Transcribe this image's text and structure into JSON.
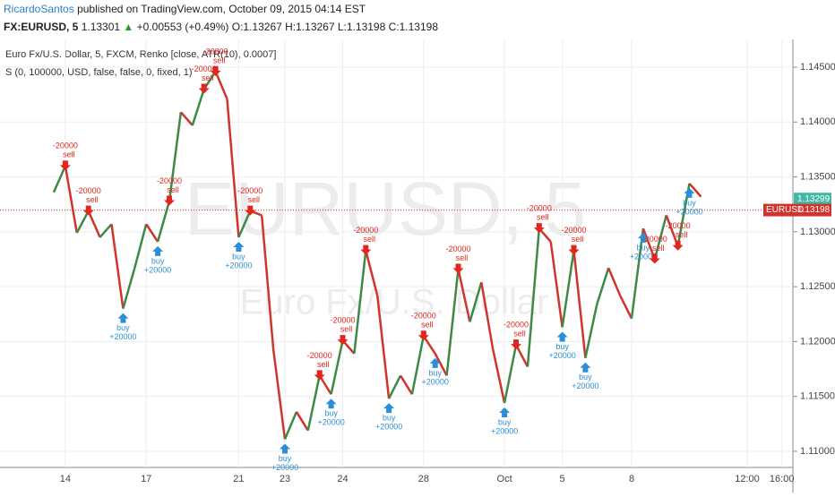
{
  "header": {
    "author": "RicardoSantos",
    "published": "published on TradingView.com, October 09, 2015 04:14 EST",
    "symbol": "FX:EURUSD, 5",
    "last": "1.13301",
    "change_arrow": "▲",
    "change": "+0.00553 (+0.49%)",
    "open": "O:1.13267",
    "high": "H:1.13267",
    "low": "L:1.13198",
    "close": "C:1.13198"
  },
  "chart_data": {
    "type": "renko",
    "legend_main": "Euro Fx/U.S. Dollar, 5, FXCM, Renko [close, ATR(10), 0.0007]",
    "legend_study": "S (0, 100000, USD, false, false, 0, fixed, 1)",
    "watermark": "EURUSD, 5",
    "watermark_sub": "Euro Fx/U.S. Dollar",
    "up_color": "#3c8a45",
    "down_color": "#d0342c",
    "buy_color": "#2a8fd6",
    "sell_color": "#e0261e",
    "categories": [
      null,
      "14",
      null,
      null,
      null,
      null,
      null,
      null,
      "17",
      null,
      null,
      null,
      null,
      null,
      null,
      null,
      "21",
      null,
      null,
      null,
      "23",
      null,
      null,
      null,
      null,
      "24",
      null,
      null,
      null,
      null,
      null,
      null,
      "28",
      null,
      null,
      null,
      null,
      null,
      null,
      "Oct",
      null,
      null,
      null,
      null,
      "5",
      null,
      null,
      null,
      null,
      null,
      "8",
      null,
      null,
      null,
      null,
      null,
      null,
      null,
      null,
      null,
      "12:00",
      null,
      null,
      "16:00"
    ],
    "values": [
      1.1336,
      1.136,
      1.1299,
      1.1319,
      1.1295,
      1.1307,
      1.123,
      1.1267,
      1.1307,
      1.1291,
      1.1328,
      1.1409,
      1.1397,
      1.143,
      1.1446,
      1.1421,
      1.1295,
      1.1319,
      1.1315,
      1.1193,
      1.1111,
      1.1136,
      1.1119,
      1.1169,
      1.1152,
      1.1201,
      1.1189,
      1.1283,
      1.1242,
      1.1148,
      1.1169,
      1.1152,
      1.1205,
      1.1189,
      1.1169,
      1.1266,
      1.1218,
      1.1254,
      1.1193,
      1.1144,
      1.1197,
      1.1177,
      1.1303,
      1.1291,
      1.1213,
      1.1283,
      1.1185,
      1.1234,
      1.1267,
      1.1242,
      1.1221,
      1.1303,
      1.1275,
      1.1315,
      1.1287,
      1.1344,
      1.1332,
      null,
      null,
      null,
      null,
      null,
      null,
      null
    ],
    "signals": [
      null,
      {
        "side": "sell",
        "amount": "-20000"
      },
      null,
      {
        "side": "sell",
        "amount": "-20000"
      },
      null,
      null,
      {
        "side": "buy",
        "amount": "+20000"
      },
      null,
      null,
      {
        "side": "buy",
        "amount": "+20000"
      },
      {
        "side": "sell",
        "amount": "-20000"
      },
      null,
      null,
      {
        "side": "sell",
        "amount": "-20000"
      },
      {
        "side": "sell",
        "amount": "-20000"
      },
      null,
      {
        "side": "buy",
        "amount": "+20000"
      },
      {
        "side": "sell",
        "amount": "-20000"
      },
      null,
      null,
      {
        "side": "buy",
        "amount": "+20000"
      },
      null,
      null,
      {
        "side": "sell",
        "amount": "-20000"
      },
      {
        "side": "buy",
        "amount": "+20000"
      },
      {
        "side": "sell",
        "amount": "-20000"
      },
      null,
      {
        "side": "sell",
        "amount": "-20000"
      },
      null,
      {
        "side": "buy",
        "amount": "+20000"
      },
      null,
      null,
      {
        "side": "sell",
        "amount": "-20000"
      },
      {
        "side": "buy",
        "amount": "+20000"
      },
      null,
      {
        "side": "sell",
        "amount": "-20000"
      },
      null,
      null,
      null,
      {
        "side": "buy",
        "amount": "+20000"
      },
      {
        "side": "sell",
        "amount": "-20000"
      },
      null,
      {
        "side": "sell",
        "amount": "-20000"
      },
      null,
      {
        "side": "buy",
        "amount": "+20000"
      },
      {
        "side": "sell",
        "amount": "-20000"
      },
      {
        "side": "buy",
        "amount": "+20000"
      },
      null,
      null,
      null,
      null,
      {
        "side": "buy",
        "amount": "+20000"
      },
      {
        "side": "sell",
        "amount": "-20000"
      },
      null,
      {
        "side": "sell",
        "amount": "-20000"
      },
      {
        "side": "buy",
        "amount": "+20000"
      },
      null,
      null,
      null,
      null,
      null,
      null,
      null,
      null,
      null
    ],
    "ylim": [
      1.10869,
      1.14745
    ],
    "yticks": [
      {
        "value": 1.11,
        "label": "1.11000"
      },
      {
        "value": 1.115,
        "label": "1.11500"
      },
      {
        "value": 1.12,
        "label": "1.12000"
      },
      {
        "value": 1.125,
        "label": "1.12500"
      },
      {
        "value": 1.13,
        "label": "1.13000"
      },
      {
        "value": 1.135,
        "label": "1.13500"
      },
      {
        "value": 1.14,
        "label": "1.14000"
      },
      {
        "value": 1.145,
        "label": "1.14500"
      }
    ],
    "grid": true,
    "last_price": 1.13299,
    "close_symbol": "EURUSD",
    "close_price": 1.13198
  }
}
